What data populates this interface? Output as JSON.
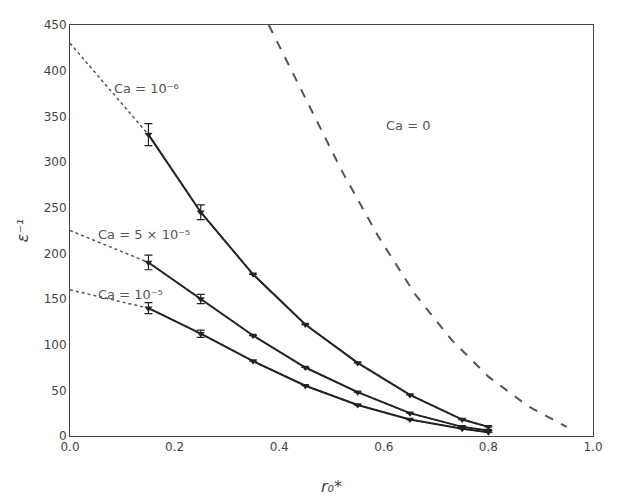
{
  "chart_data": {
    "type": "line",
    "xlabel": "r₀*",
    "ylabel": "ε⁻¹",
    "xlim": [
      0,
      1.0
    ],
    "ylim": [
      0,
      450
    ],
    "xticks": [
      {
        "value": 0,
        "label": "0.0"
      },
      0.2,
      0.4,
      0.6,
      0.8,
      {
        "value": 1.0,
        "label": "1.0"
      }
    ],
    "yticks": [
      0,
      50,
      100,
      150,
      200,
      250,
      300,
      350,
      400,
      450
    ],
    "grid": false,
    "series": [
      {
        "x": [
          0.38,
          0.45,
          0.52,
          0.59,
          0.66,
          0.73,
          0.8,
          0.875,
          0.95
        ],
        "values": [
          450,
          370,
          290,
          218,
          155,
          105,
          65,
          33,
          10
        ],
        "color": "#555555",
        "line_style": "dashed"
      },
      {
        "x": [
          0.0,
          0.15,
          0.25,
          0.35,
          0.45,
          0.55,
          0.65,
          0.75,
          0.8
        ],
        "values": [
          430,
          330,
          245,
          177,
          122,
          80,
          45,
          18,
          10
        ],
        "color": "#555555",
        "line_style": "dotted"
      },
      {
        "x": [
          0.15,
          0.25,
          0.35,
          0.45,
          0.55,
          0.65,
          0.75,
          0.8
        ],
        "values": [
          330,
          245,
          177,
          122,
          80,
          45,
          18,
          10
        ],
        "errors": [
          12,
          8,
          0,
          0,
          0,
          0,
          0,
          0
        ],
        "color": "#222222",
        "line_style": "solid",
        "marker": "triangle-down"
      },
      {
        "x": [
          0.0,
          0.15,
          0.25,
          0.35,
          0.45,
          0.55,
          0.65,
          0.75,
          0.8
        ],
        "values": [
          225,
          190,
          150,
          110,
          75,
          48,
          25,
          10,
          6
        ],
        "color": "#555555",
        "line_style": "dotted"
      },
      {
        "x": [
          0.15,
          0.25,
          0.35,
          0.45,
          0.55,
          0.65,
          0.75,
          0.8
        ],
        "values": [
          190,
          150,
          110,
          75,
          48,
          25,
          10,
          6
        ],
        "errors": [
          8,
          5,
          0,
          0,
          0,
          0,
          0,
          0
        ],
        "color": "#222222",
        "line_style": "solid",
        "marker": "triangle-down"
      },
      {
        "x": [
          0.0,
          0.15,
          0.25,
          0.35,
          0.45,
          0.55,
          0.65,
          0.75,
          0.8
        ],
        "values": [
          160,
          140,
          112,
          82,
          55,
          34,
          18,
          8,
          4
        ],
        "color": "#555555",
        "line_style": "dotted"
      },
      {
        "x": [
          0.15,
          0.25,
          0.35,
          0.45,
          0.55,
          0.65,
          0.75,
          0.8
        ],
        "values": [
          140,
          112,
          82,
          55,
          34,
          18,
          8,
          4
        ],
        "errors": [
          6,
          4,
          0,
          0,
          0,
          0,
          0,
          0
        ],
        "color": "#222222",
        "line_style": "solid",
        "marker": "triangle-down"
      }
    ],
    "annotations": [
      {
        "text": "Ca = 0",
        "x": 0.6,
        "y": 330,
        "color": "#555555"
      },
      {
        "text": "Ca = 10⁻⁶",
        "x": 0.08,
        "y": 370,
        "color": "#555555"
      },
      {
        "text": "Ca = 5 × 10⁻⁵",
        "x": 0.05,
        "y": 210,
        "color": "#555555"
      },
      {
        "text": "Ca = 10⁻⁵",
        "x": 0.05,
        "y": 145,
        "color": "#555555"
      }
    ]
  }
}
